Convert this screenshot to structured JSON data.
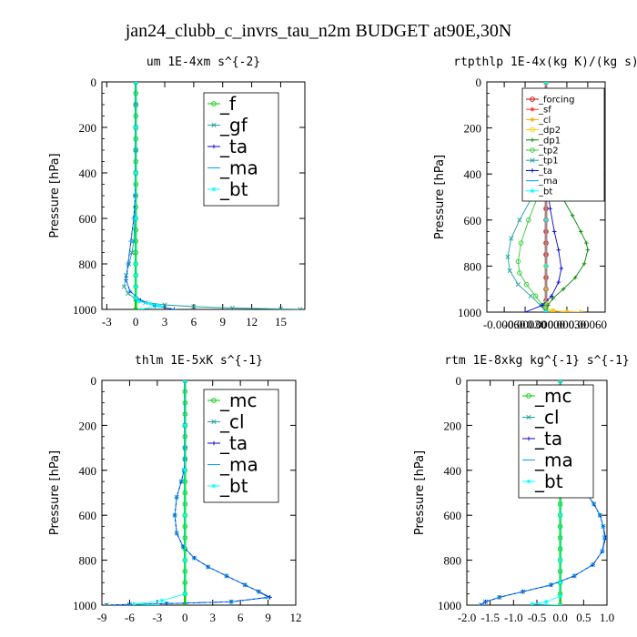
{
  "figure_title": "jan24_clubb_c_invrs_tau_n2m  BUDGET at90E,30N",
  "chart_data": [
    {
      "type": "line",
      "title": "um  1E-4xm s^{-2}",
      "ylabel": "Pressure [hPa]",
      "xlim": [
        -3.5,
        17.5
      ],
      "ylim": [
        1000,
        0
      ],
      "xticks": [
        "-3",
        "0",
        "3",
        "6",
        "9",
        "12",
        "15"
      ],
      "xtick_values": [
        -3,
        0,
        3,
        6,
        9,
        12,
        15
      ],
      "yticks": [
        0,
        200,
        400,
        600,
        800,
        1000
      ],
      "legend_font": 20,
      "series": [
        {
          "name": "_f",
          "color": "#00cc00",
          "marker": "o",
          "x": [
            0,
            0,
            0,
            0,
            0,
            0,
            0,
            0,
            0,
            0,
            0,
            0,
            0,
            0,
            0,
            0,
            0,
            0,
            0,
            0,
            0
          ],
          "y": [
            0,
            50,
            100,
            150,
            200,
            250,
            300,
            350,
            400,
            450,
            500,
            550,
            600,
            650,
            700,
            750,
            800,
            850,
            900,
            950,
            1000
          ]
        },
        {
          "name": "_gf",
          "color": "#1f9f9f",
          "marker": "x",
          "x": [
            0,
            0,
            0,
            0,
            0,
            -0.05,
            -0.1,
            -0.2,
            -0.4,
            -0.7,
            -1.0,
            -1.2,
            -0.8,
            0,
            1,
            3,
            6,
            10,
            15,
            17
          ],
          "y": [
            0,
            100,
            200,
            300,
            400,
            500,
            600,
            700,
            750,
            800,
            850,
            900,
            930,
            955,
            970,
            980,
            988,
            994,
            998,
            1000
          ]
        },
        {
          "name": "_ta",
          "color": "#0000cc",
          "marker": "+",
          "x": [
            0,
            0,
            0,
            0,
            0,
            -0.05,
            -0.2,
            -0.5,
            -0.8,
            -1.0,
            -0.6,
            0.5,
            2,
            4
          ],
          "y": [
            0,
            100,
            200,
            300,
            400,
            500,
            600,
            700,
            800,
            870,
            920,
            960,
            985,
            1000
          ]
        },
        {
          "name": "_ma",
          "color": "#00a0ff",
          "marker": "-",
          "x": [
            0,
            0,
            0,
            0,
            0,
            -0.05,
            -0.2,
            -0.5,
            -0.8,
            -1.0,
            -0.6,
            0.5,
            2,
            4
          ],
          "y": [
            0,
            100,
            200,
            300,
            400,
            500,
            600,
            700,
            800,
            870,
            920,
            960,
            985,
            1000
          ]
        },
        {
          "name": "_bt",
          "color": "#00ffff",
          "marker": "*",
          "x": [
            0,
            0,
            0,
            0,
            0,
            0,
            0,
            0,
            0.3,
            1.5,
            2.5,
            0.5
          ],
          "y": [
            0,
            200,
            400,
            600,
            800,
            850,
            900,
            950,
            965,
            975,
            985,
            1000
          ]
        }
      ]
    },
    {
      "type": "line",
      "title": "rtpthlp  1E-4x(kg K)/(kg s)",
      "ylabel": "Pressure [hPa]",
      "xlim": [
        -0.00085,
        0.00085
      ],
      "ylim": [
        1000,
        0
      ],
      "xticks": [
        "-0.00060",
        "-0.00030",
        "0.00000",
        "0.00030",
        "0.00060"
      ],
      "xtick_values": [
        -0.0006,
        -0.0003,
        0,
        0.0003,
        0.0006
      ],
      "yticks": [
        0,
        200,
        400,
        600,
        800,
        1000
      ],
      "legend_font": 10,
      "series": [
        {
          "name": "_forcing",
          "color": "#cc0000",
          "marker": "o",
          "x": [
            0,
            0,
            0,
            0,
            0,
            0,
            0,
            0,
            0,
            0,
            0,
            0,
            0,
            0,
            0,
            0,
            0,
            0,
            0,
            0,
            0
          ],
          "y": [
            0,
            50,
            100,
            150,
            200,
            250,
            300,
            350,
            400,
            450,
            500,
            550,
            600,
            650,
            700,
            750,
            800,
            850,
            900,
            950,
            1000
          ]
        },
        {
          "name": "_sf",
          "color": "#ff3333",
          "marker": "*",
          "x": [
            0,
            0,
            0,
            0,
            0,
            0,
            0,
            0,
            0,
            0,
            0,
            0,
            0,
            0,
            0,
            0,
            0,
            0,
            0,
            0,
            0
          ],
          "y": [
            0,
            50,
            100,
            150,
            200,
            250,
            300,
            350,
            400,
            450,
            500,
            550,
            600,
            650,
            700,
            750,
            800,
            850,
            900,
            950,
            1000
          ]
        },
        {
          "name": "_cl",
          "color": "#ffaa00",
          "marker": "*",
          "x": [
            0,
            0,
            0,
            0,
            0,
            0,
            0.0001,
            0.0003,
            0.0005
          ],
          "y": [
            0,
            300,
            600,
            900,
            960,
            985,
            995,
            998,
            1000
          ]
        },
        {
          "name": "_dp2",
          "color": "#ffcc00",
          "marker": "o",
          "x": [
            0,
            0,
            0,
            0,
            0,
            0.0001,
            0.0003
          ],
          "y": [
            0,
            400,
            800,
            960,
            985,
            995,
            1000
          ]
        },
        {
          "name": "_dp1",
          "color": "#008800",
          "marker": "+",
          "x": [
            0,
            0,
            2e-05,
            0.0001,
            0.00023,
            0.00038,
            0.0005,
            0.00058,
            0.0006,
            0.00055,
            0.00042,
            0.00025,
            0.0001,
            3e-05,
            0
          ],
          "y": [
            0,
            250,
            300,
            400,
            500,
            580,
            650,
            700,
            730,
            790,
            850,
            900,
            940,
            970,
            1000
          ]
        },
        {
          "name": "_tp2",
          "color": "#33cc33",
          "marker": "o",
          "x": [
            0,
            0,
            -2e-05,
            -0.00012,
            -0.00025,
            -0.00036,
            -0.0004,
            -0.00038,
            -0.00028,
            -0.00015,
            -5e-05,
            0
          ],
          "y": [
            0,
            300,
            400,
            500,
            600,
            700,
            780,
            830,
            880,
            930,
            970,
            1000
          ]
        },
        {
          "name": "_tp1",
          "color": "#1f9f9f",
          "marker": "x",
          "x": [
            0,
            0,
            -5e-05,
            -0.0002,
            -0.00038,
            -0.0005,
            -0.00055,
            -0.00052,
            -0.0004,
            -0.00022,
            -8e-05,
            0
          ],
          "y": [
            0,
            300,
            400,
            500,
            600,
            680,
            760,
            820,
            880,
            930,
            970,
            1000
          ]
        },
        {
          "name": "_ta",
          "color": "#0000cc",
          "marker": "+",
          "x": [
            0,
            0,
            2e-05,
            6e-05,
            0.00012,
            0.00018,
            0.00022,
            0.00018,
            8e-05,
            -5e-05,
            -0.0003
          ],
          "y": [
            0,
            300,
            450,
            550,
            650,
            730,
            810,
            870,
            930,
            970,
            1000
          ]
        },
        {
          "name": "_ma",
          "color": "#00a0ff",
          "marker": "-",
          "x": [
            0,
            0,
            0,
            0,
            0,
            0
          ],
          "y": [
            0,
            200,
            400,
            600,
            800,
            1000
          ]
        },
        {
          "name": "_bt",
          "color": "#00ffff",
          "marker": "*",
          "x": [
            0,
            0,
            0,
            0,
            0,
            0
          ],
          "y": [
            0,
            200,
            400,
            600,
            800,
            1000
          ]
        }
      ]
    },
    {
      "type": "line",
      "title": "thlm  1E-5xK s^{-1}",
      "ylabel": "Pressure [hPa]",
      "xlim": [
        -9,
        12
      ],
      "ylim": [
        1000,
        0
      ],
      "xticks": [
        "-9",
        "-6",
        "-3",
        "0",
        "3",
        "6",
        "9",
        "12"
      ],
      "xtick_values": [
        -9,
        -6,
        -3,
        0,
        3,
        6,
        9,
        12
      ],
      "yticks": [
        0,
        200,
        400,
        600,
        800,
        1000
      ],
      "legend_font": 20,
      "series": [
        {
          "name": "_mc",
          "color": "#00cc00",
          "marker": "o",
          "x": [
            0,
            0,
            0,
            0,
            0,
            0,
            0,
            0,
            0,
            0,
            0,
            0,
            0,
            0,
            0,
            0,
            0,
            0,
            0,
            0,
            0
          ],
          "y": [
            0,
            50,
            100,
            150,
            200,
            250,
            300,
            350,
            400,
            450,
            500,
            550,
            600,
            650,
            700,
            750,
            800,
            850,
            900,
            950,
            1000
          ]
        },
        {
          "name": "_cl",
          "color": "#1f9f9f",
          "marker": "x",
          "x": [
            0,
            0,
            0,
            0,
            -0.1,
            -0.4,
            -0.9,
            -1.1,
            -0.9,
            -0.2,
            1.0,
            2.5,
            4.5,
            6.5,
            8.0,
            9.0,
            5.0,
            -2.0,
            -6.0,
            -8.5
          ],
          "y": [
            0,
            200,
            300,
            350,
            400,
            450,
            520,
            600,
            680,
            740,
            790,
            830,
            870,
            910,
            940,
            965,
            985,
            993,
            997,
            1000
          ]
        },
        {
          "name": "_ta",
          "color": "#0000cc",
          "marker": "+",
          "x": [
            0,
            0,
            0,
            0,
            -0.1,
            -0.4,
            -0.9,
            -1.1,
            -0.9,
            -0.2,
            1.0,
            2.5,
            4.5,
            6.5,
            8.0,
            9.2,
            5.0,
            -2.0,
            -6.0,
            -8.5
          ],
          "y": [
            0,
            200,
            300,
            350,
            400,
            450,
            520,
            600,
            680,
            740,
            790,
            830,
            870,
            910,
            940,
            965,
            985,
            993,
            997,
            1000
          ]
        },
        {
          "name": "_ma",
          "color": "#00a0ff",
          "marker": "-",
          "x": [
            0,
            0,
            0,
            0,
            -0.1,
            -0.4,
            -0.9,
            -1.1,
            -0.9,
            -0.2,
            1.0,
            2.5,
            4.5,
            6.5,
            8.0,
            9.0,
            5.0,
            -2.0,
            -6.0,
            -8.5
          ],
          "y": [
            0,
            200,
            300,
            350,
            400,
            450,
            520,
            600,
            680,
            740,
            790,
            830,
            870,
            910,
            940,
            965,
            985,
            993,
            997,
            1000
          ]
        },
        {
          "name": "_bt",
          "color": "#00ffff",
          "marker": "*",
          "x": [
            0,
            0,
            0,
            0,
            0,
            0,
            -2.5,
            -5.5,
            -3
          ],
          "y": [
            0,
            200,
            400,
            600,
            800,
            950,
            980,
            995,
            1000
          ]
        }
      ]
    },
    {
      "type": "line",
      "title": "rtm  1E-8xkg kg^{-1} s^{-1}",
      "ylabel": "Pressure [hPa]",
      "xlim": [
        -2.0,
        1.0
      ],
      "ylim": [
        1000,
        0
      ],
      "xticks": [
        "-2.0",
        "-1.5",
        "-1.0",
        "-0.5",
        "0.0",
        "0.5",
        "1.0"
      ],
      "xtick_values": [
        -2.0,
        -1.5,
        -1.0,
        -0.5,
        0.0,
        0.5,
        1.0
      ],
      "yticks": [
        0,
        200,
        400,
        600,
        800,
        1000
      ],
      "legend_font": 20,
      "series": [
        {
          "name": "_mc",
          "color": "#00cc00",
          "marker": "o",
          "x": [
            0,
            0,
            0,
            0,
            0,
            0,
            0,
            0,
            0,
            0,
            0,
            0,
            0,
            0,
            0,
            0,
            0,
            0,
            0,
            0,
            0
          ],
          "y": [
            0,
            50,
            100,
            150,
            200,
            250,
            300,
            350,
            400,
            450,
            500,
            550,
            600,
            650,
            700,
            750,
            800,
            850,
            900,
            950,
            1000
          ]
        },
        {
          "name": "_cl",
          "color": "#1f9f9f",
          "marker": "x",
          "x": [
            0,
            0,
            0.01,
            0.02,
            0.03,
            0.05,
            0.1,
            0.2,
            0.35,
            0.55,
            0.72,
            0.85,
            0.92,
            0.95,
            0.9,
            0.7,
            0.3,
            -0.2,
            -0.8,
            -1.3,
            -1.6,
            -1.7
          ],
          "y": [
            0,
            100,
            200,
            250,
            300,
            330,
            360,
            400,
            450,
            500,
            550,
            600,
            650,
            700,
            760,
            820,
            870,
            910,
            940,
            965,
            985,
            1000
          ]
        },
        {
          "name": "_ta",
          "color": "#0000cc",
          "marker": "+",
          "x": [
            0,
            0,
            0.01,
            0.02,
            0.03,
            0.05,
            0.1,
            0.2,
            0.35,
            0.55,
            0.72,
            0.85,
            0.92,
            0.97,
            0.9,
            0.7,
            0.3,
            -0.2,
            -0.8,
            -1.3,
            -1.6,
            -1.7
          ],
          "y": [
            0,
            100,
            200,
            250,
            300,
            330,
            360,
            400,
            450,
            500,
            550,
            600,
            650,
            700,
            760,
            820,
            870,
            910,
            940,
            965,
            985,
            1000
          ]
        },
        {
          "name": "_ma",
          "color": "#00a0ff",
          "marker": "-",
          "x": [
            0,
            0,
            0.01,
            0.02,
            0.03,
            0.05,
            0.1,
            0.2,
            0.35,
            0.55,
            0.72,
            0.85,
            0.92,
            0.95,
            0.9,
            0.7,
            0.3,
            -0.2,
            -0.8,
            -1.3,
            -1.6,
            -1.7
          ],
          "y": [
            0,
            100,
            200,
            250,
            300,
            330,
            360,
            400,
            450,
            500,
            550,
            600,
            650,
            700,
            760,
            820,
            870,
            910,
            940,
            965,
            985,
            1000
          ]
        },
        {
          "name": "_bt",
          "color": "#00ffff",
          "marker": "*",
          "x": [
            0,
            0,
            0,
            0,
            0,
            0,
            0,
            -0.3,
            -0.6,
            0
          ],
          "y": [
            0,
            200,
            400,
            600,
            800,
            900,
            960,
            985,
            995,
            1000
          ]
        }
      ]
    }
  ]
}
